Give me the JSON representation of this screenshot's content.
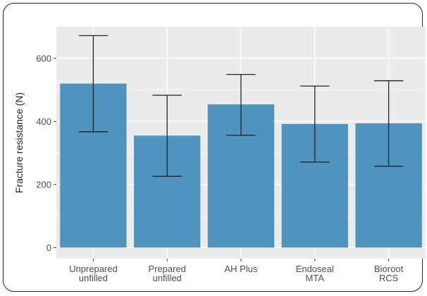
{
  "chart_data": {
    "type": "bar",
    "title": "",
    "xlabel": "",
    "ylabel": "Fracture resistance (N)",
    "categories": [
      [
        "Unprepared",
        "unfilled"
      ],
      [
        "Prepared",
        "unfilled"
      ],
      [
        "AH Plus"
      ],
      [
        "Endoseal",
        "MTA"
      ],
      [
        "Bioroot",
        "RCS"
      ]
    ],
    "values": [
      520,
      355,
      454,
      392,
      394
    ],
    "error_low": [
      367,
      226,
      356,
      271,
      258
    ],
    "error_high": [
      672,
      483,
      549,
      512,
      529
    ],
    "ylim": [
      -35,
      700
    ],
    "yticks": [
      0,
      200,
      400,
      600
    ],
    "grid": true,
    "legend": "none",
    "colors": {
      "bar": "#4f93bf",
      "panel": "#ebebeb",
      "grid": "#ffffff",
      "error_bar": "#222222"
    }
  }
}
